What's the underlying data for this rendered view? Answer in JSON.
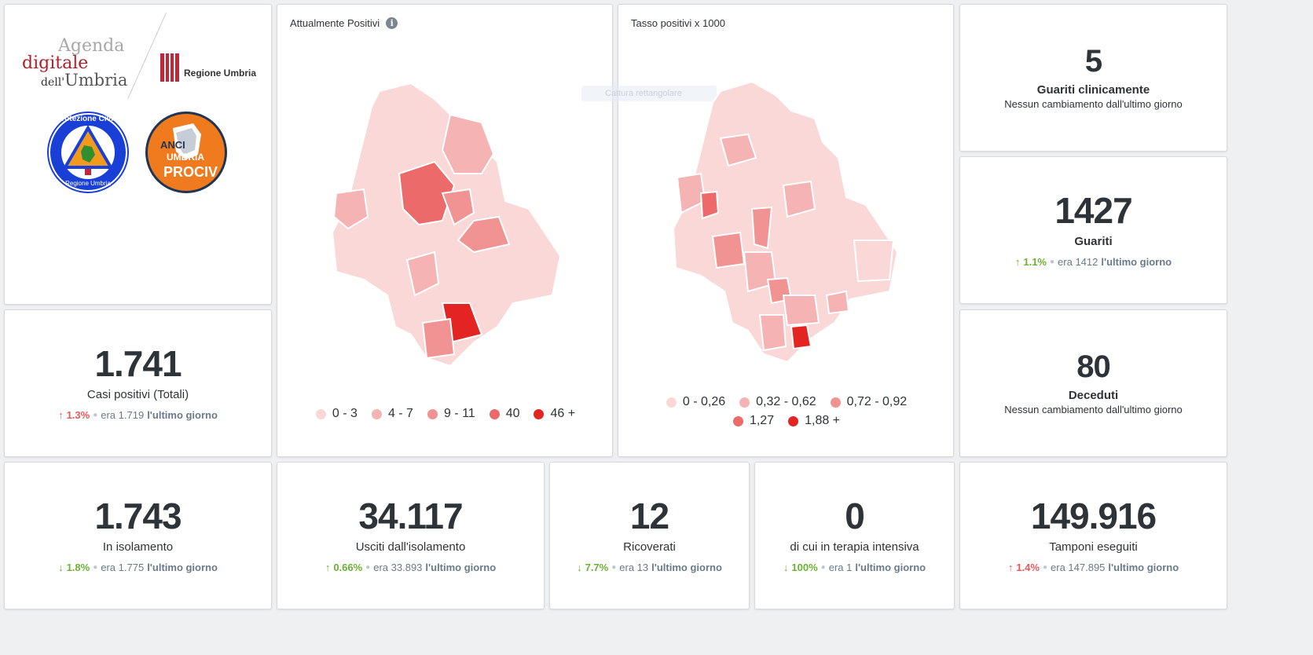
{
  "logos": {
    "agenda_line1": "Agenda",
    "agenda_line2": "digitale",
    "agenda_line3_prefix": "dell'",
    "agenda_line3": "Umbria",
    "regione": "Regione Umbria",
    "protezione_top": "Protezione Civile",
    "protezione_bottom": "Regione Umbria",
    "anci_line1": "ANCI",
    "anci_line2": "UMBRIA",
    "anci_line3": "PROCIV"
  },
  "maps": [
    {
      "title": "Attualmente Positivi",
      "legend": [
        {
          "label": "0 - 3",
          "color": "#fbd8d8"
        },
        {
          "label": "4 - 7",
          "color": "#f6b3b3"
        },
        {
          "label": "9 - 11",
          "color": "#f19393"
        },
        {
          "label": "40",
          "color": "#ec6a6a"
        },
        {
          "label": "46 +",
          "color": "#e42323"
        }
      ]
    },
    {
      "title": "Tasso positivi x 1000",
      "legend": [
        {
          "label": "0 - 0,26",
          "color": "#fbd8d8"
        },
        {
          "label": "0,32 - 0,62",
          "color": "#f6b3b3"
        },
        {
          "label": "0,72 - 0,92",
          "color": "#f19393"
        },
        {
          "label": "1,27",
          "color": "#ec6a6a"
        },
        {
          "label": "1,88 +",
          "color": "#e42323"
        }
      ]
    }
  ],
  "overlay_hint": "Cattura rettangolare",
  "kpis": {
    "guariti_clinicamente": {
      "value": "5",
      "label": "Guariti clinicamente",
      "sub": "Nessun cambiamento dall'ultimo giorno"
    },
    "guariti": {
      "value": "1427",
      "label": "Guariti",
      "arrow": "↑",
      "pct": "1.1%",
      "prev": "era 1412",
      "tail": "l'ultimo giorno"
    },
    "deceduti": {
      "value": "80",
      "label": "Deceduti",
      "sub": "Nessun cambiamento dall'ultimo giorno"
    },
    "casi_positivi": {
      "value": "1.741",
      "label": "Casi positivi (Totali)",
      "arrow": "↑",
      "pct": "1.3%",
      "prev": "era 1.719",
      "tail": "l'ultimo giorno"
    },
    "isolamento": {
      "value": "1.743",
      "label": "In isolamento",
      "arrow": "↓",
      "pct": "1.8%",
      "prev": "era 1.775",
      "tail": "l'ultimo giorno"
    },
    "usciti": {
      "value": "34.117",
      "label": "Usciti dall'isolamento",
      "arrow": "↑",
      "pct": "0.66%",
      "prev": "era 33.893",
      "tail": "l'ultimo giorno"
    },
    "ricoverati": {
      "value": "12",
      "label": "Ricoverati",
      "arrow": "↓",
      "pct": "7.7%",
      "prev": "era 13",
      "tail": "l'ultimo giorno"
    },
    "terapia": {
      "value": "0",
      "label": "di cui in terapia intensiva",
      "arrow": "↓",
      "pct": "100%",
      "prev": "era 1",
      "tail": "l'ultimo giorno"
    },
    "tamponi": {
      "value": "149.916",
      "label": "Tamponi eseguiti",
      "arrow": "↑",
      "pct": "1.4%",
      "prev": "era 147.895",
      "tail": "l'ultimo giorno"
    }
  }
}
